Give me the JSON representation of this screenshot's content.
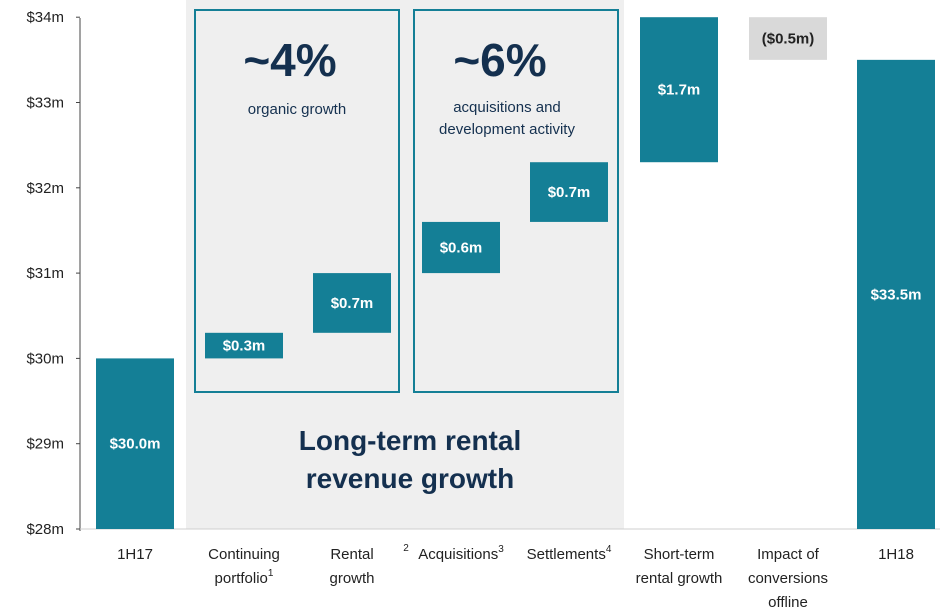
{
  "chart_data": {
    "type": "bar",
    "subtype": "waterfall",
    "y_ticks": [
      "$28m",
      "$29m",
      "$30m",
      "$31m",
      "$32m",
      "$33m",
      "$34m"
    ],
    "ylim": [
      28,
      34
    ],
    "grid": false,
    "colors": {
      "bar": "#147f96",
      "negative": "#d9d9d9",
      "shade": "#efefef",
      "box_border": "#147f96",
      "text_dark": "#14304f"
    },
    "bars": [
      {
        "lines": [
          "1H17"
        ],
        "sup": "",
        "pre_sup": "",
        "start": 28.0,
        "end": 30.0,
        "label": "$30.0m",
        "kind": "total"
      },
      {
        "lines": [
          "Continuing",
          "portfolio"
        ],
        "sup": "1",
        "pre_sup": "",
        "start": 30.0,
        "end": 30.3,
        "label": "$0.3m",
        "kind": "increase"
      },
      {
        "lines": [
          "Rental",
          "growth"
        ],
        "sup": "",
        "pre_sup": "",
        "start": 30.3,
        "end": 31.0,
        "label": "$0.7m",
        "kind": "increase"
      },
      {
        "lines": [
          "Acquisitions"
        ],
        "sup": "3",
        "pre_sup": "2",
        "start": 31.0,
        "end": 31.6,
        "label": "$0.6m",
        "kind": "increase"
      },
      {
        "lines": [
          "Settlements"
        ],
        "sup": "4",
        "pre_sup": "",
        "start": 31.6,
        "end": 32.3,
        "label": "$0.7m",
        "kind": "increase"
      },
      {
        "lines": [
          "Short-term",
          "rental growth"
        ],
        "sup": "",
        "pre_sup": "",
        "start": 32.3,
        "end": 34.0,
        "label": "$1.7m",
        "kind": "increase"
      },
      {
        "lines": [
          "Impact of",
          "conversions",
          "offline"
        ],
        "sup": "",
        "pre_sup": "",
        "start": 34.0,
        "end": 33.5,
        "label": "($0.5m)",
        "kind": "decrease"
      },
      {
        "lines": [
          "1H18"
        ],
        "sup": "",
        "pre_sup": "",
        "start": 28.0,
        "end": 33.5,
        "label": "$33.5m",
        "kind": "total"
      }
    ],
    "annotations": {
      "organic": {
        "pct": "~4%",
        "desc": [
          "organic growth"
        ]
      },
      "acquisitions": {
        "pct": "~6%",
        "desc": [
          "acquisitions and",
          "development activity"
        ]
      },
      "headline": [
        "Long-term rental",
        "revenue growth"
      ]
    }
  }
}
